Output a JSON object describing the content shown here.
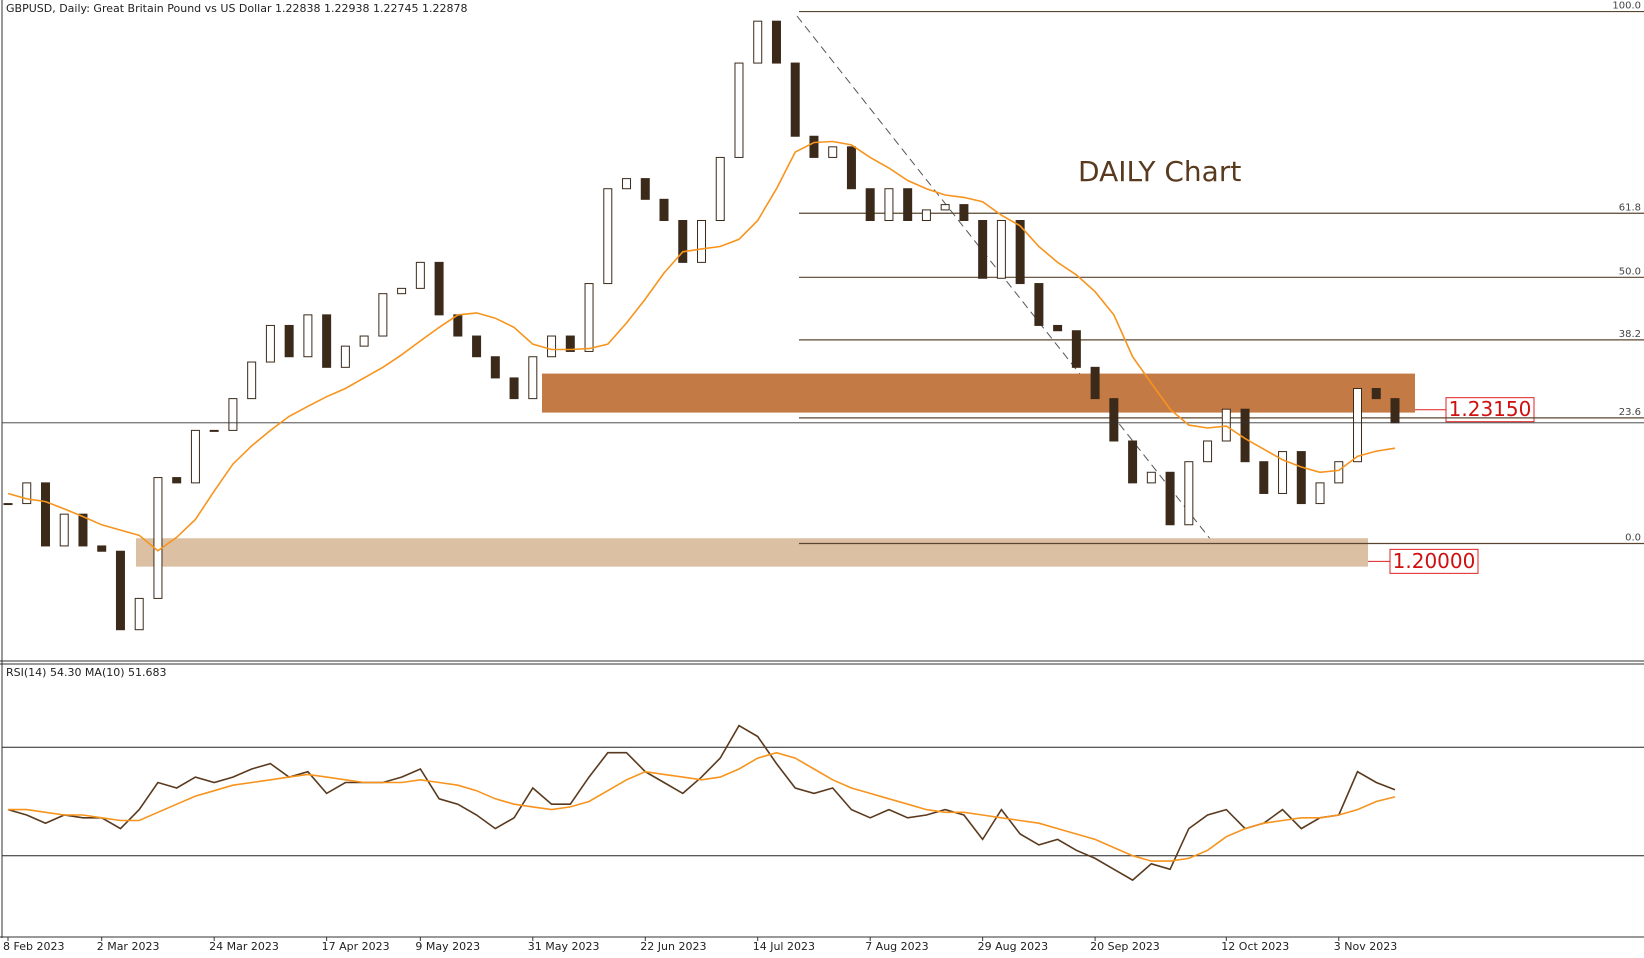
{
  "chart_data": [
    {
      "type": "candlestick",
      "title": "GBPUSD, Daily:  Great Britain Pound vs US Dollar  1.22838 1.22938 1.22745 1.22878",
      "annotation": "DAILY Chart",
      "categories": [
        "8 Feb 2023",
        null,
        null,
        null,
        null,
        "2 Mar 2023",
        null,
        null,
        null,
        null,
        null,
        "24 Mar 2023",
        null,
        null,
        null,
        null,
        null,
        "17 Apr 2023",
        null,
        null,
        null,
        null,
        "9 May 2023",
        null,
        null,
        null,
        null,
        null,
        "31 May 2023",
        null,
        null,
        null,
        null,
        null,
        "22 Jun 2023",
        null,
        null,
        null,
        null,
        null,
        "14 Jul 2023",
        null,
        null,
        null,
        null,
        null,
        "7 Aug 2023",
        null,
        null,
        null,
        null,
        null,
        "29 Aug 2023",
        null,
        null,
        null,
        null,
        null,
        "20 Sep 2023",
        null,
        null,
        null,
        null,
        null,
        null,
        "12 Oct 2023",
        null,
        null,
        null,
        null,
        null,
        "3 Nov 2023",
        null,
        null,
        null
      ],
      "ylim": [
        1.1793,
        1.3166
      ],
      "series": [
        {
          "type": "candlestick",
          "color": "#3b2a1a",
          "values": [
            1.212,
            1.2163,
            1.2032,
            1.2098,
            1.2032,
            1.2021,
            1.1858,
            1.1923,
            1.2174,
            1.2163,
            1.2272,
            1.2272,
            1.2338,
            1.2414,
            1.249,
            1.2425,
            1.2512,
            1.2403,
            1.2447,
            1.2468,
            1.2556,
            1.2567,
            1.2621,
            1.2512,
            1.2468,
            1.2425,
            1.2381,
            1.2338,
            1.2425,
            1.2468,
            1.2436,
            1.2577,
            1.2774,
            1.2795,
            1.2752,
            1.2708,
            1.2621,
            1.2708,
            1.2839,
            1.3035,
            1.3122,
            1.3035,
            1.2883,
            1.2839,
            1.2861,
            1.2774,
            1.2708,
            1.2774,
            1.2708,
            1.273,
            1.2741,
            1.2708,
            1.2588,
            1.2708,
            1.2577,
            1.249,
            1.2479,
            1.2403,
            1.2338,
            1.225,
            1.2163,
            1.2185,
            1.2076,
            1.2207,
            1.225,
            1.2316,
            1.2207,
            1.2141,
            1.2228,
            1.212,
            1.2163,
            1.2207,
            1.2359,
            1.2338,
            1.22878
          ]
        },
        {
          "type": "line",
          "color": "#f7941d",
          "values": [
            1.2141,
            1.213,
            1.2124,
            1.2109,
            1.2093,
            1.2076,
            1.2065,
            1.2054,
            1.2022,
            1.205,
            1.2087,
            1.2146,
            1.2202,
            1.224,
            1.2272,
            1.2301,
            1.2322,
            1.2342,
            1.2359,
            1.2381,
            1.2403,
            1.2429,
            1.2458,
            1.2486,
            1.2512,
            1.2516,
            1.2505,
            1.2486,
            1.2451,
            1.244,
            1.244,
            1.2442,
            1.2451,
            1.2495,
            1.2545,
            1.2599,
            1.2643,
            1.2649,
            1.2654,
            1.2669,
            1.2708,
            1.2774,
            1.285,
            1.287,
            1.2872,
            1.2865,
            1.2839,
            1.2817,
            1.2791,
            1.2774,
            1.2761,
            1.2756,
            1.2747,
            1.2719,
            1.2697,
            1.2654,
            1.2621,
            1.2595,
            1.256,
            1.2512,
            1.2425,
            1.237,
            1.2316,
            1.2283,
            1.2277,
            1.2281,
            1.2255,
            1.2233,
            1.2211,
            1.2196,
            1.2185,
            1.2189,
            1.2218,
            1.2229,
            1.2235
          ]
        }
      ],
      "fib_levels": [
        {
          "level": {
            "value": 100,
            "label": "100.0"
          },
          "price": 1.3142
        },
        {
          "level": 61.8,
          "price": 1.2723
        },
        {
          "level": {
            "value": 50,
            "label": "50.0"
          },
          "price": 1.259
        },
        {
          "level": 38.2,
          "price": 1.246
        },
        {
          "level": 23.6,
          "price": 1.2298
        },
        {
          "level": {
            "value": 0,
            "label": "0.0"
          },
          "price": 1.2037
        }
      ],
      "zones": [
        {
          "low": 1.2309,
          "high": 1.239,
          "color": "#c47a45",
          "label": {
            "value": 1.2315,
            "label": "1.23150"
          }
        },
        {
          "low": 1.1989,
          "high": 1.2048,
          "color": "#dcc0a4",
          "label": {
            "value": 1.2,
            "label": "1.20000"
          }
        }
      ]
    },
    {
      "type": "line",
      "title": "RSI(14) 54.30 MA(10) 51.683",
      "ylim": [
        0,
        100
      ],
      "levels": [
        70,
        30
      ],
      "series": [
        {
          "color": "#5a3a1e",
          "values": [
            47,
            45,
            42,
            45,
            44,
            44,
            40,
            47,
            57,
            55,
            59,
            57,
            59,
            62,
            64,
            59,
            61,
            53,
            57,
            57,
            57,
            59,
            62,
            51,
            49,
            45,
            40,
            44,
            55,
            49,
            49,
            59,
            68,
            68,
            61,
            57,
            53,
            59,
            66,
            78,
            74,
            64,
            55,
            53,
            55,
            47,
            44,
            47,
            44,
            45,
            47,
            45,
            36,
            47,
            38,
            34,
            36,
            32,
            29,
            25,
            21,
            27,
            25,
            40,
            45,
            47,
            40,
            42,
            47,
            40,
            44,
            45,
            61,
            57,
            54.3
          ]
        },
        {
          "color": "#f7941d",
          "values": [
            47,
            47,
            46,
            45,
            45,
            44,
            43,
            43,
            46,
            49,
            52,
            54,
            56,
            57,
            58,
            59,
            60,
            59,
            58,
            57,
            57,
            57,
            58,
            57,
            56,
            54,
            51,
            49,
            48,
            47,
            48,
            50,
            54,
            58,
            61,
            60,
            59,
            58,
            59,
            62,
            66,
            68,
            66,
            62,
            58,
            55,
            53,
            51,
            49,
            47,
            46,
            46,
            45,
            44,
            43,
            42,
            40,
            38,
            36,
            33,
            30,
            28,
            28,
            29,
            32,
            37,
            40,
            42,
            43,
            44,
            44,
            45,
            47,
            50,
            51.683
          ]
        }
      ]
    }
  ]
}
